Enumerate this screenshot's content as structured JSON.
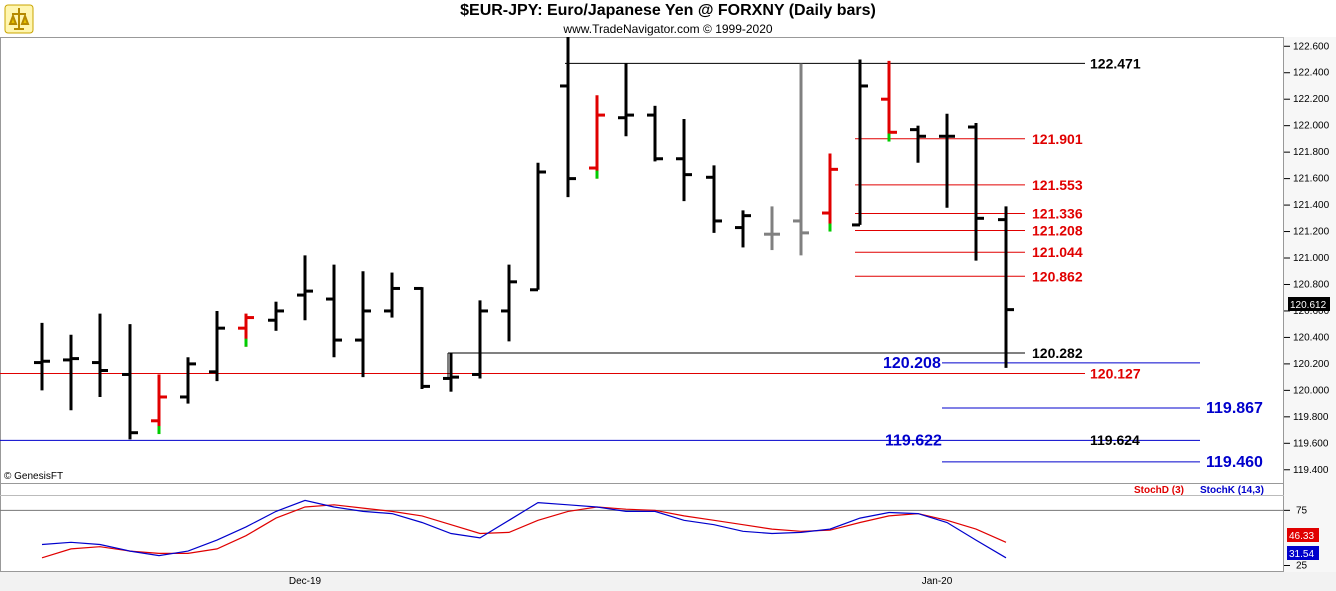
{
  "header": {
    "title": "$EUR-JPY:  Euro/Japanese Yen @ FORXNY  (Daily bars)",
    "subtitle": "www.TradeNavigator.com © 1999-2020"
  },
  "colors": {
    "bar": "#000000",
    "down_red": "#e00000",
    "up_green": "#00cc00",
    "gray": "#808080",
    "red_line": "#e00000",
    "blue_line": "#0000cc",
    "stochD": "#e00000",
    "stochK": "#0000cc"
  },
  "copyright": "© GenesisFT",
  "chart_data": [
    {
      "type": "line",
      "subtype": "ohlc",
      "title": "$EUR-JPY:  Euro/Japanese Yen @ FORXNY  (Daily bars)",
      "ylim": [
        119.3,
        122.67
      ],
      "y_ticks": [
        "122.600",
        "122.400",
        "122.200",
        "122.000",
        "121.800",
        "121.600",
        "121.400",
        "121.200",
        "121.000",
        "120.800",
        "120.600",
        "120.400",
        "120.200",
        "120.000",
        "119.800",
        "119.600",
        "119.400"
      ],
      "x_tick_labels": [
        "Dec-19",
        "Jan-20"
      ],
      "last_price_label": "120.612",
      "bars": [
        {
          "o": 120.21,
          "h": 120.51,
          "l": 120.0,
          "c": 120.22,
          "color": "black"
        },
        {
          "o": 120.23,
          "h": 120.42,
          "l": 119.85,
          "c": 120.24,
          "color": "black"
        },
        {
          "o": 120.21,
          "h": 120.58,
          "l": 119.95,
          "c": 120.15,
          "color": "black"
        },
        {
          "o": 120.12,
          "h": 120.5,
          "l": 119.63,
          "c": 119.68,
          "color": "black"
        },
        {
          "o": 119.77,
          "h": 120.12,
          "l": 119.67,
          "c": 119.95,
          "color": "red"
        },
        {
          "o": 119.95,
          "h": 120.25,
          "l": 119.9,
          "c": 120.2,
          "color": "black"
        },
        {
          "o": 120.14,
          "h": 120.6,
          "l": 120.07,
          "c": 120.47,
          "color": "black"
        },
        {
          "o": 120.47,
          "h": 120.58,
          "l": 120.33,
          "c": 120.55,
          "color": "red"
        },
        {
          "o": 120.53,
          "h": 120.67,
          "l": 120.45,
          "c": 120.6,
          "color": "black"
        },
        {
          "o": 120.72,
          "h": 121.02,
          "l": 120.53,
          "c": 120.75,
          "color": "black"
        },
        {
          "o": 120.69,
          "h": 120.95,
          "l": 120.25,
          "c": 120.38,
          "color": "black"
        },
        {
          "o": 120.38,
          "h": 120.9,
          "l": 120.1,
          "c": 120.6,
          "color": "black"
        },
        {
          "o": 120.6,
          "h": 120.89,
          "l": 120.55,
          "c": 120.77,
          "color": "black"
        },
        {
          "o": 120.77,
          "h": 120.78,
          "l": 120.01,
          "c": 120.03,
          "color": "black"
        },
        {
          "o": 120.09,
          "h": 120.28,
          "l": 119.99,
          "c": 120.1,
          "color": "black"
        },
        {
          "o": 120.12,
          "h": 120.68,
          "l": 120.09,
          "c": 120.6,
          "color": "black"
        },
        {
          "o": 120.6,
          "h": 120.95,
          "l": 120.37,
          "c": 120.82,
          "color": "black"
        },
        {
          "o": 120.76,
          "h": 121.72,
          "l": 120.76,
          "c": 121.65,
          "color": "black"
        },
        {
          "o": 122.3,
          "h": 122.67,
          "l": 121.46,
          "c": 121.6,
          "color": "black"
        },
        {
          "o": 121.68,
          "h": 122.23,
          "l": 121.6,
          "c": 122.08,
          "color": "red"
        },
        {
          "o": 122.06,
          "h": 122.47,
          "l": 121.92,
          "c": 122.08,
          "color": "black"
        },
        {
          "o": 122.08,
          "h": 122.15,
          "l": 121.73,
          "c": 121.75,
          "color": "black"
        },
        {
          "o": 121.75,
          "h": 122.05,
          "l": 121.43,
          "c": 121.63,
          "color": "black"
        },
        {
          "o": 121.61,
          "h": 121.7,
          "l": 121.19,
          "c": 121.28,
          "color": "black"
        },
        {
          "o": 121.23,
          "h": 121.36,
          "l": 121.08,
          "c": 121.32,
          "color": "black"
        },
        {
          "o": 121.18,
          "h": 121.39,
          "l": 121.06,
          "c": 121.18,
          "color": "gray"
        },
        {
          "o": 121.28,
          "h": 122.47,
          "l": 121.02,
          "c": 121.19,
          "color": "gray"
        },
        {
          "o": 121.34,
          "h": 121.79,
          "l": 121.2,
          "c": 121.67,
          "color": "red"
        },
        {
          "o": 121.25,
          "h": 122.5,
          "l": 121.25,
          "c": 122.3,
          "color": "black"
        },
        {
          "o": 122.2,
          "h": 122.49,
          "l": 121.88,
          "c": 121.95,
          "color": "red"
        },
        {
          "o": 121.97,
          "h": 122.0,
          "l": 121.72,
          "c": 121.92,
          "color": "black"
        },
        {
          "o": 121.92,
          "h": 122.09,
          "l": 121.38,
          "c": 121.92,
          "color": "black"
        },
        {
          "o": 121.99,
          "h": 122.02,
          "l": 120.98,
          "c": 121.3,
          "color": "black"
        },
        {
          "o": 121.29,
          "h": 121.39,
          "l": 120.17,
          "c": 120.61,
          "color": "black"
        }
      ],
      "levels": [
        {
          "value": "122.471",
          "color": "black"
        },
        {
          "value": "121.901",
          "color": "red"
        },
        {
          "value": "121.553",
          "color": "red"
        },
        {
          "value": "121.336",
          "color": "red"
        },
        {
          "value": "121.208",
          "color": "red"
        },
        {
          "value": "121.044",
          "color": "red"
        },
        {
          "value": "120.862",
          "color": "red"
        },
        {
          "value": "120.282",
          "color": "black"
        },
        {
          "value": "120.208",
          "color": "blue"
        },
        {
          "value": "120.127",
          "color": "red"
        },
        {
          "value": "119.867",
          "color": "blue"
        },
        {
          "value": "119.622",
          "color": "blue"
        },
        {
          "value": "119.624",
          "color": "black"
        },
        {
          "value": "119.460",
          "color": "blue"
        }
      ]
    },
    {
      "type": "line",
      "title": "",
      "ylim": [
        20,
        88
      ],
      "y_ticks": [
        "75",
        "25"
      ],
      "series": [
        {
          "name": "StochD (3)",
          "color": "#e00000",
          "label_value": "46.33",
          "x": [
            0,
            1,
            2,
            3,
            4,
            5,
            6,
            7,
            8,
            9,
            10,
            11,
            12,
            13,
            14,
            15,
            16,
            17,
            18,
            19,
            20,
            21,
            22,
            23,
            24,
            25,
            26,
            27,
            28,
            29,
            30,
            31,
            32,
            33
          ],
          "values": [
            32,
            40,
            42,
            38,
            36,
            36,
            40,
            52,
            68,
            78,
            80,
            77,
            74,
            70,
            62,
            54,
            55,
            66,
            74,
            78,
            76,
            75,
            70,
            66,
            62,
            58,
            56,
            57,
            64,
            70,
            72,
            66,
            58,
            46
          ]
        },
        {
          "name": "StochK (14,3)",
          "color": "#0000cc",
          "label_value": "31.54",
          "x": [
            0,
            1,
            2,
            3,
            4,
            5,
            6,
            7,
            8,
            9,
            10,
            11,
            12,
            13,
            14,
            15,
            16,
            17,
            18,
            19,
            20,
            21,
            22,
            23,
            24,
            25,
            26,
            27,
            28,
            29,
            30,
            31,
            32,
            33
          ],
          "values": [
            44,
            46,
            44,
            38,
            34,
            38,
            48,
            60,
            74,
            84,
            78,
            74,
            72,
            64,
            54,
            50,
            66,
            82,
            80,
            78,
            74,
            74,
            66,
            62,
            56,
            54,
            55,
            58,
            68,
            73,
            72,
            64,
            48,
            32
          ]
        }
      ],
      "x_tick_labels": [
        "Dec-19",
        "Jan-20"
      ]
    }
  ]
}
